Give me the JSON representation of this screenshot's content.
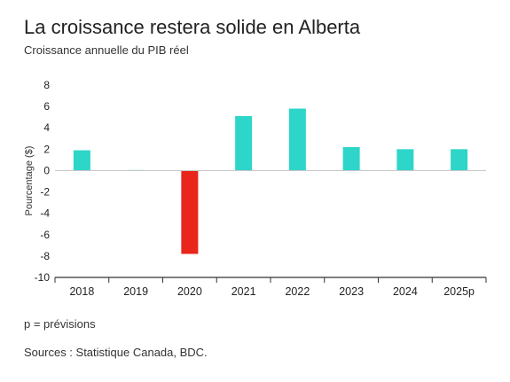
{
  "chart_data": {
    "type": "bar",
    "title": "La croissance restera solide en Alberta",
    "subtitle": "Croissance annuelle du PIB réel",
    "ylabel": "Pourcentage ($)",
    "xlabel": "",
    "categories": [
      "2018",
      "2019",
      "2020",
      "2021",
      "2022",
      "2023",
      "2024",
      "2025p"
    ],
    "values": [
      1.9,
      0.05,
      -7.8,
      5.1,
      5.8,
      2.2,
      2.0,
      2.0
    ],
    "ylim": [
      -10,
      8
    ],
    "yticks": [
      8,
      6,
      4,
      2,
      0,
      -2,
      -4,
      -6,
      -8,
      -10
    ],
    "grid": false,
    "legend": "none",
    "colors": {
      "positive": "#2dd6c9",
      "negative": "#e8261c",
      "axis": "#333333",
      "baseline": "#c8c8c8"
    }
  },
  "footer": {
    "note": "p = prévisions",
    "source": "Sources : Statistique Canada, BDC."
  }
}
